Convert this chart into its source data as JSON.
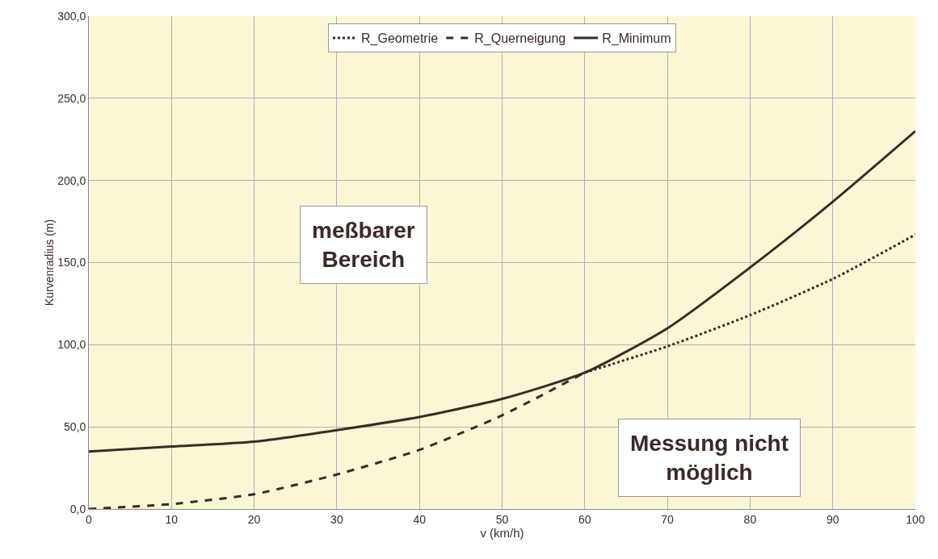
{
  "chart_data": {
    "type": "line",
    "xlabel": "v (km/h)",
    "ylabel": "Kurvenradius (m)",
    "xlim": [
      0,
      100
    ],
    "xticks": [
      0,
      10,
      20,
      30,
      40,
      50,
      60,
      70,
      80,
      90,
      100
    ],
    "ylim": [
      0,
      300
    ],
    "yticks": [
      {
        "value": 0,
        "label": "0,0"
      },
      {
        "value": 50,
        "label": "50,0"
      },
      {
        "value": 100,
        "label": "100,0"
      },
      {
        "value": 150,
        "label": "150,0"
      },
      {
        "value": 200,
        "label": "200,0"
      },
      {
        "value": 250,
        "label": "250,0"
      },
      {
        "value": 300,
        "label": "300,0"
      }
    ],
    "grid": true,
    "legend": "top",
    "marker": "none",
    "series": [
      {
        "name": "R_Geometrie",
        "color": "#3b2a26",
        "line_style": "dotted",
        "x": [
          60,
          70,
          80,
          90,
          100
        ],
        "values": [
          83,
          99,
          118,
          140,
          167
        ]
      },
      {
        "name": "R_Querneigung",
        "color": "#3b2a26",
        "line_style": "dashed",
        "x": [
          0,
          10,
          20,
          30,
          40,
          50,
          60
        ],
        "values": [
          0,
          3,
          9,
          21,
          36,
          57,
          83
        ]
      },
      {
        "name": "R_Minimum",
        "color": "#3b2a26",
        "line_style": "solid",
        "x": [
          0,
          10,
          20,
          30,
          40,
          50,
          60,
          70,
          80,
          90,
          100
        ],
        "values": [
          35,
          38,
          41,
          48,
          56,
          67,
          83,
          110,
          147,
          187,
          230
        ]
      }
    ],
    "annotations": [
      "meßbarer\nBereich",
      "Messung nicht\nmöglich"
    ]
  }
}
